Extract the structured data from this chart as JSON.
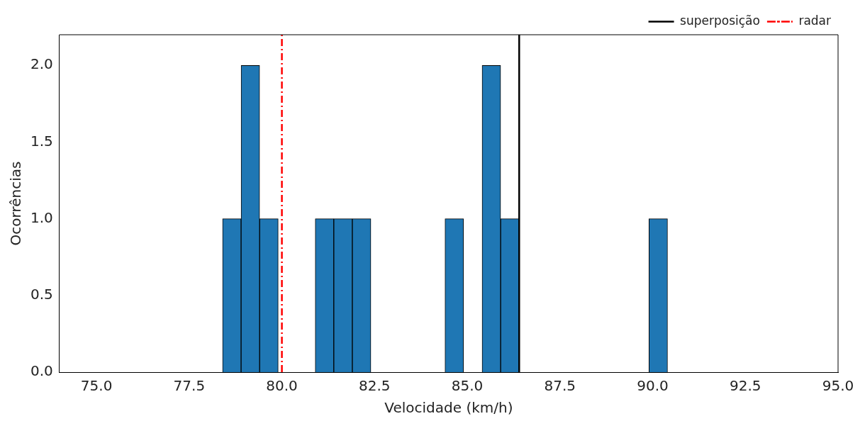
{
  "chart_data": {
    "type": "histogram",
    "xlabel": "Velocidade (km/h)",
    "ylabel": "Ocorrências",
    "bins": [
      78.4,
      78.9,
      79.4,
      79.9,
      80.4,
      80.9,
      81.4,
      81.9,
      82.4,
      82.9,
      83.4,
      83.9,
      84.4,
      84.9,
      85.4,
      85.9,
      86.4,
      86.9,
      87.4,
      87.9,
      88.4,
      88.9,
      89.4,
      89.9,
      90.4
    ],
    "values": [
      1,
      2,
      1,
      0,
      0,
      1,
      1,
      1,
      0,
      0,
      0,
      0,
      1,
      0,
      2,
      1,
      0,
      0,
      0,
      0,
      0,
      0,
      0,
      1
    ],
    "color": "#1f77b4",
    "xlim": [
      74,
      95
    ],
    "xticks": [
      {
        "value": 75,
        "label": "75.0"
      },
      {
        "value": 77.5,
        "label": "77.5"
      },
      {
        "value": 80,
        "label": "80.0"
      },
      {
        "value": 82.5,
        "label": "82.5"
      },
      {
        "value": 85,
        "label": "85.0"
      },
      {
        "value": 87.5,
        "label": "87.5"
      },
      {
        "value": 90,
        "label": "90.0"
      },
      {
        "value": 92.5,
        "label": "92.5"
      },
      {
        "value": 95,
        "label": "95.0"
      }
    ],
    "ylim": [
      0,
      2.2
    ],
    "yticks": [
      {
        "value": 0,
        "label": "0.0"
      },
      {
        "value": 0.5,
        "label": "0.5"
      },
      {
        "value": 1,
        "label": "1.0"
      },
      {
        "value": 1.5,
        "label": "1.5"
      },
      {
        "value": 2,
        "label": "2.0"
      }
    ],
    "ref_lines": [
      {
        "axis": "x",
        "value": 86.4,
        "label": "superposição",
        "color": "#000000",
        "line_style": "solid"
      },
      {
        "axis": "x",
        "value": 80,
        "label": "radar",
        "color": "#ff0000",
        "line_style": "dashed"
      }
    ],
    "legend": "top right",
    "grid": false
  }
}
